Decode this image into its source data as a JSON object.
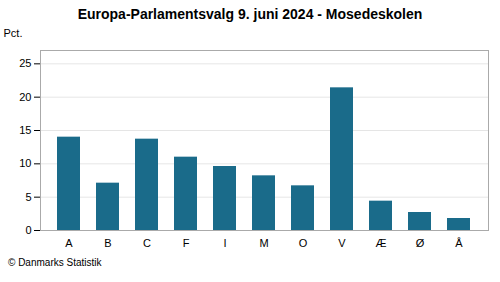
{
  "chart_data": {
    "type": "bar",
    "title": "Europa-Parlamentsvalg 9. juni 2024 - Mosedeskolen",
    "caption": "© Danmarks Statistik",
    "ylabel": "Pct.",
    "categories": [
      "A",
      "B",
      "C",
      "F",
      "I",
      "M",
      "O",
      "V",
      "Æ",
      "Ø",
      "Å"
    ],
    "values": [
      14.0,
      7.1,
      13.7,
      11.0,
      9.6,
      8.2,
      6.7,
      21.4,
      4.4,
      2.7,
      1.8
    ],
    "color": "#1a6b8a",
    "ylim": [
      0,
      27
    ],
    "yticks": [
      0,
      5,
      10,
      15,
      20,
      25
    ],
    "grid": true
  }
}
